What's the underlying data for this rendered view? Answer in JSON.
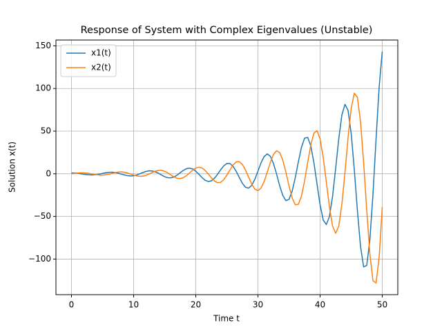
{
  "chart_data": {
    "type": "line",
    "title": "Response of System with Complex Eigenvalues (Unstable)",
    "x_label": "Time t",
    "y_label": "Solution x(t)",
    "x": [
      0,
      0.5,
      1,
      1.5,
      2,
      2.5,
      3,
      3.5,
      4,
      4.5,
      5,
      5.5,
      6,
      6.5,
      7,
      7.5,
      8,
      8.5,
      9,
      9.5,
      10,
      10.5,
      11,
      11.5,
      12,
      12.5,
      13,
      13.5,
      14,
      14.5,
      15,
      15.5,
      16,
      16.5,
      17,
      17.5,
      18,
      18.5,
      19,
      19.5,
      20,
      20.5,
      21,
      21.5,
      22,
      22.5,
      23,
      23.5,
      24,
      24.5,
      25,
      25.5,
      26,
      26.5,
      27,
      27.5,
      28,
      28.5,
      29,
      29.5,
      30,
      30.5,
      31,
      31.5,
      32,
      32.5,
      33,
      33.5,
      34,
      34.5,
      35,
      35.5,
      36,
      36.5,
      37,
      37.5,
      38,
      38.5,
      39,
      39.5,
      40,
      40.5,
      41,
      41.5,
      42,
      42.5,
      43,
      43.5,
      44,
      44.5,
      45,
      45.5,
      46,
      46.5,
      47,
      47.5,
      48,
      48.5,
      49,
      49.5,
      50
    ],
    "series": [
      {
        "name": "x1(t)",
        "color": "#1f77b4",
        "values": [
          1.0,
          0.9,
          0.6,
          0.1,
          -0.5,
          -1.0,
          -1.3,
          -1.3,
          -1.0,
          -0.3,
          0.5,
          1.2,
          1.7,
          1.9,
          1.5,
          0.7,
          -0.3,
          -1.4,
          -2.2,
          -2.6,
          -2.3,
          -1.4,
          0.0,
          1.5,
          2.8,
          3.5,
          3.3,
          2.3,
          0.6,
          -1.5,
          -3.4,
          -4.6,
          -4.7,
          -3.7,
          -1.5,
          1.3,
          4.0,
          6.0,
          6.6,
          5.6,
          3.0,
          -0.6,
          -4.5,
          -7.6,
          -9.0,
          -8.3,
          -5.3,
          -0.6,
          4.7,
          9.3,
          12.1,
          12.0,
          8.7,
          2.9,
          -4.3,
          -11.2,
          -15.8,
          -16.8,
          -13.6,
          -6.5,
          3.1,
          12.9,
          20.3,
          23.3,
          20.5,
          12.0,
          -0.4,
          -14.1,
          -25.4,
          -31.5,
          -29.9,
          -20.5,
          -4.7,
          14.0,
          31.0,
          41.7,
          42.7,
          32.7,
          13.2,
          -11.8,
          -36.4,
          -54.1,
          -59.6,
          -50.1,
          -26.7,
          6.2,
          40.9,
          68.8,
          81.4,
          74.2,
          47.3,
          5.0,
          -43.0,
          -84.9,
          -109.1,
          -107.5,
          -77.8,
          -24.7,
          40.4,
          101.8,
          143.2
        ]
      },
      {
        "name": "x2(t)",
        "color": "#ff7f0e",
        "values": [
          0,
          0.5,
          0.9,
          1.2,
          1.1,
          0.8,
          0.2,
          -0.5,
          -1.1,
          -1.5,
          -1.6,
          -1.2,
          -0.5,
          0.4,
          1.3,
          2.0,
          2.2,
          1.9,
          1.0,
          -0.2,
          -1.5,
          -2.5,
          -3.0,
          -2.8,
          -1.8,
          -0.2,
          1.5,
          3.1,
          4.0,
          4.0,
          2.9,
          1.0,
          -1.4,
          -3.7,
          -5.3,
          -5.6,
          -4.5,
          -2.2,
          1.0,
          4.3,
          6.7,
          7.7,
          6.8,
          4.0,
          -0.1,
          -4.7,
          -8.4,
          -10.5,
          -10.0,
          -6.9,
          -1.6,
          4.6,
          10.3,
          13.9,
          14.2,
          10.9,
          4.5,
          -3.9,
          -12.1,
          -18.0,
          -19.8,
          -16.7,
          -9.0,
          2.0,
          13.5,
          22.8,
          27.1,
          24.8,
          15.9,
          1.8,
          -14.2,
          -28.2,
          -36.3,
          -35.8,
          -26.0,
          -8.4,
          13.2,
          33.7,
          47.6,
          50.6,
          40.7,
          19.2,
          -9.6,
          -38.9,
          -61.1,
          -69.8,
          -61.3,
          -35.7,
          1.4,
          42.7,
          76.6,
          94.5,
          89.7,
          61.1,
          13.6,
          -42.5,
          -93.4,
          -125.3,
          -128.1,
          -97.8,
          -38.9
        ]
      }
    ],
    "xlim": [
      -2.5,
      52.5
    ],
    "ylim": [
      -141.7,
      156.8
    ],
    "xticks": [
      0,
      10,
      20,
      30,
      40,
      50
    ],
    "yticks": [
      {
        "value": -100,
        "label": "−100"
      },
      {
        "value": -50,
        "label": "−50"
      },
      0,
      50,
      100,
      150
    ],
    "grid": true,
    "legend": "upper left"
  }
}
